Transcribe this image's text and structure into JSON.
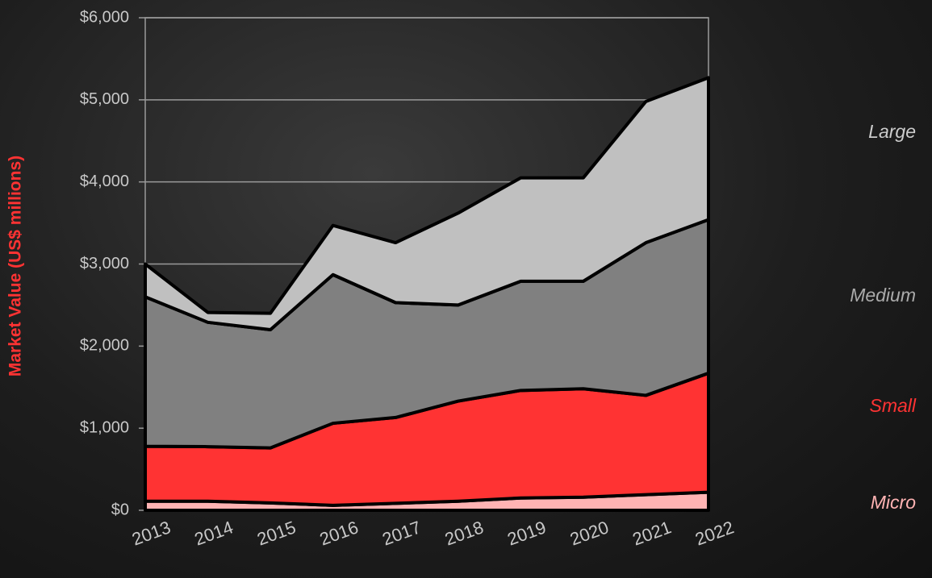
{
  "chart_data": {
    "type": "stacked-area",
    "y_label": "Market Value (US$ millions)",
    "categories": [
      "2013",
      "2014",
      "2015",
      "2016",
      "2017",
      "2018",
      "2019",
      "2020",
      "2021",
      "2022"
    ],
    "series": [
      {
        "name": "Micro",
        "color": "#ffb3b3",
        "values": [
          110,
          110,
          90,
          60,
          85,
          110,
          150,
          160,
          190,
          220
        ]
      },
      {
        "name": "Small",
        "color": "#ff3333",
        "values": [
          670,
          665,
          670,
          1000,
          1045,
          1220,
          1310,
          1320,
          1210,
          1450
        ]
      },
      {
        "name": "Medium",
        "color": "#808080",
        "values": [
          1820,
          1515,
          1440,
          1810,
          1400,
          1170,
          1330,
          1310,
          1860,
          1870
        ]
      },
      {
        "name": "Large",
        "color": "#c0c0c0",
        "values": [
          400,
          120,
          200,
          600,
          730,
          1120,
          1260,
          1260,
          1720,
          1730
        ]
      }
    ],
    "ylim": [
      0,
      6000
    ],
    "yticks": [
      {
        "value": 0,
        "label": "$0"
      },
      {
        "value": 1000,
        "label": "$1,000"
      },
      {
        "value": 2000,
        "label": "$2,000"
      },
      {
        "value": 3000,
        "label": "$3,000"
      },
      {
        "value": 4000,
        "label": "$4,000"
      },
      {
        "value": 5000,
        "label": "$5,000"
      },
      {
        "value": 6000,
        "label": "$6,000"
      }
    ],
    "grid": true,
    "legend": "right"
  }
}
